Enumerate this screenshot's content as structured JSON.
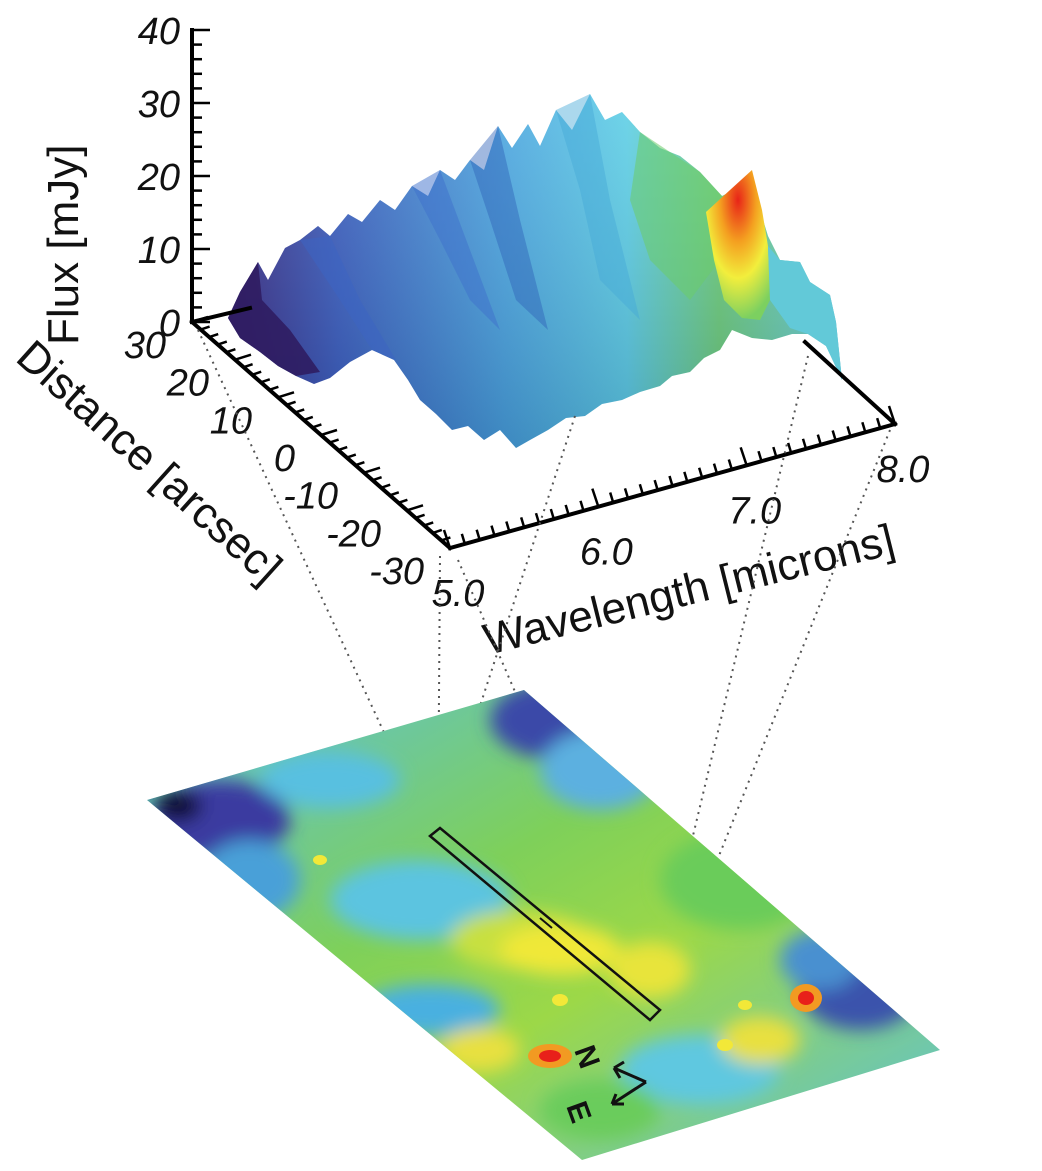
{
  "chart_data": {
    "type": "surface3d",
    "colormap": [
      "#3a1060",
      "#3a4fb0",
      "#4a9ad8",
      "#5ad0ec",
      "#64c65c",
      "#b8dc3c",
      "#f4e628",
      "#f29a22",
      "#e8301c"
    ],
    "z_axis": {
      "label": "Flux  [mJy]",
      "range": [
        0,
        40
      ],
      "ticks": [
        "0",
        "10",
        "20",
        "30",
        "40"
      ]
    },
    "y_axis": {
      "label": "Distance  [arcsec]",
      "range": [
        -30,
        30
      ],
      "ticks": [
        "30",
        "20",
        "10",
        "0",
        "-10",
        "-20",
        "-30"
      ]
    },
    "x_axis": {
      "label": "Wavelength  [microns]",
      "range": [
        5.0,
        8.0
      ],
      "ticks": [
        "5.0",
        "6.0",
        "7.0",
        "8.0"
      ]
    },
    "flux_along_front_edge": {
      "wavelength": [
        5.0,
        5.3,
        5.6,
        5.9,
        6.2,
        6.5,
        6.8,
        7.1,
        7.4,
        7.6,
        7.8,
        8.0
      ],
      "flux": [
        6,
        8,
        11,
        14,
        18,
        20,
        19,
        15,
        12,
        21,
        8,
        3
      ]
    },
    "peak_feature": {
      "wavelength": 7.7,
      "flux": 22
    }
  },
  "map": {
    "compass": {
      "north": "N",
      "east": "E"
    }
  }
}
